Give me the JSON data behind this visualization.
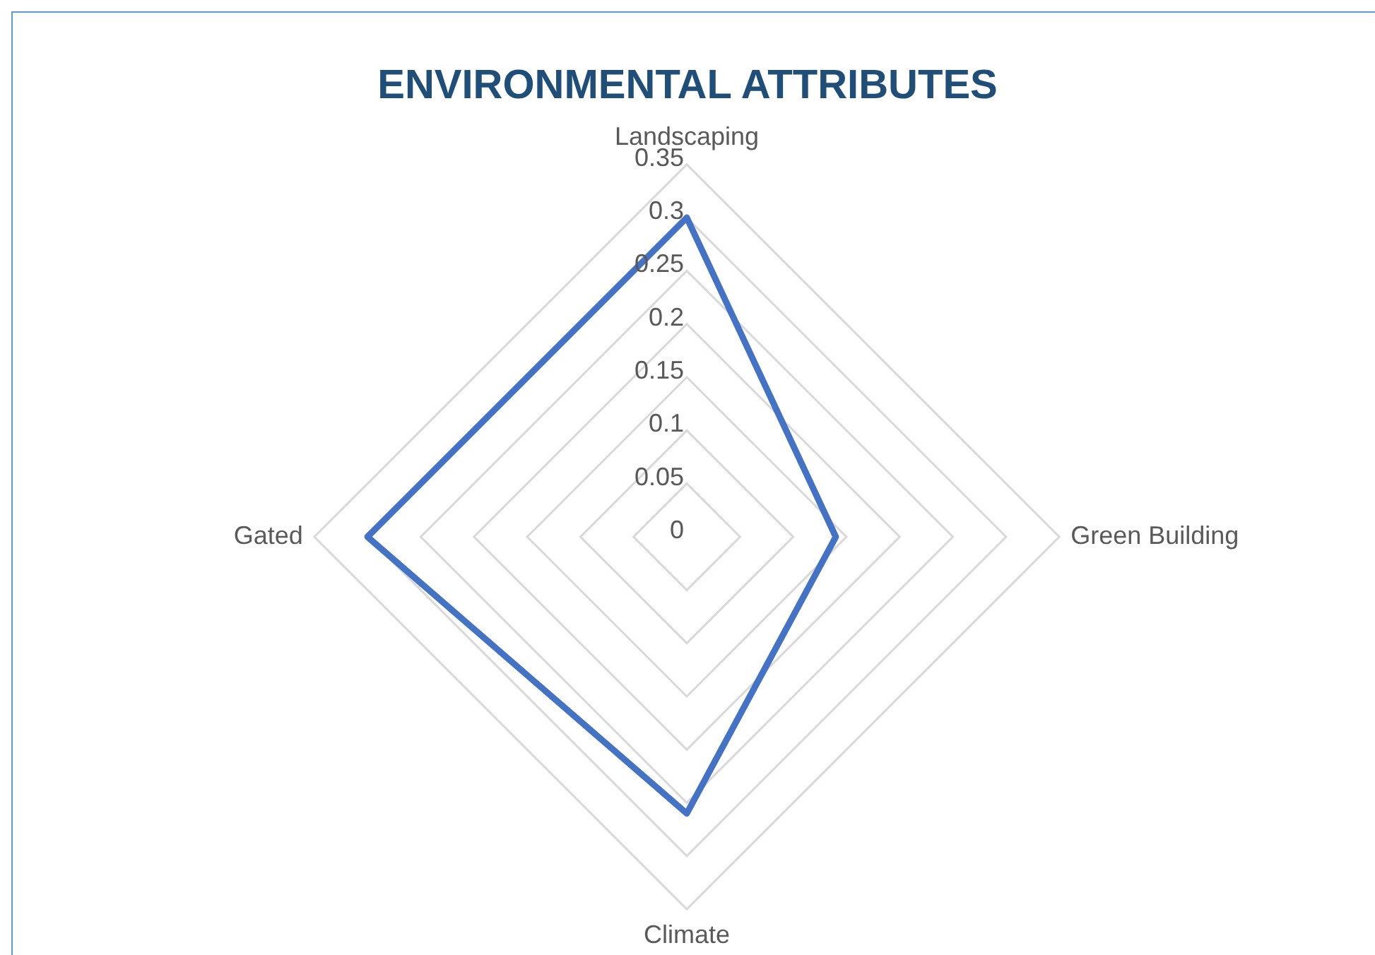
{
  "chart_data": {
    "type": "radar",
    "title": "ENVIRONMENTAL ATTRIBUTES",
    "categories": [
      "Landscaping",
      "Green Building",
      "Climate",
      "Gated"
    ],
    "series": [
      {
        "color": "#4472c4",
        "values": [
          0.3,
          0.14,
          0.26,
          0.3
        ]
      }
    ],
    "ylim": [
      0,
      0.35
    ],
    "yticks": [
      0,
      0.05,
      0.1,
      0.15,
      0.2,
      0.25,
      0.3,
      0.35
    ],
    "grid": true,
    "marker": "none",
    "legend": false
  }
}
